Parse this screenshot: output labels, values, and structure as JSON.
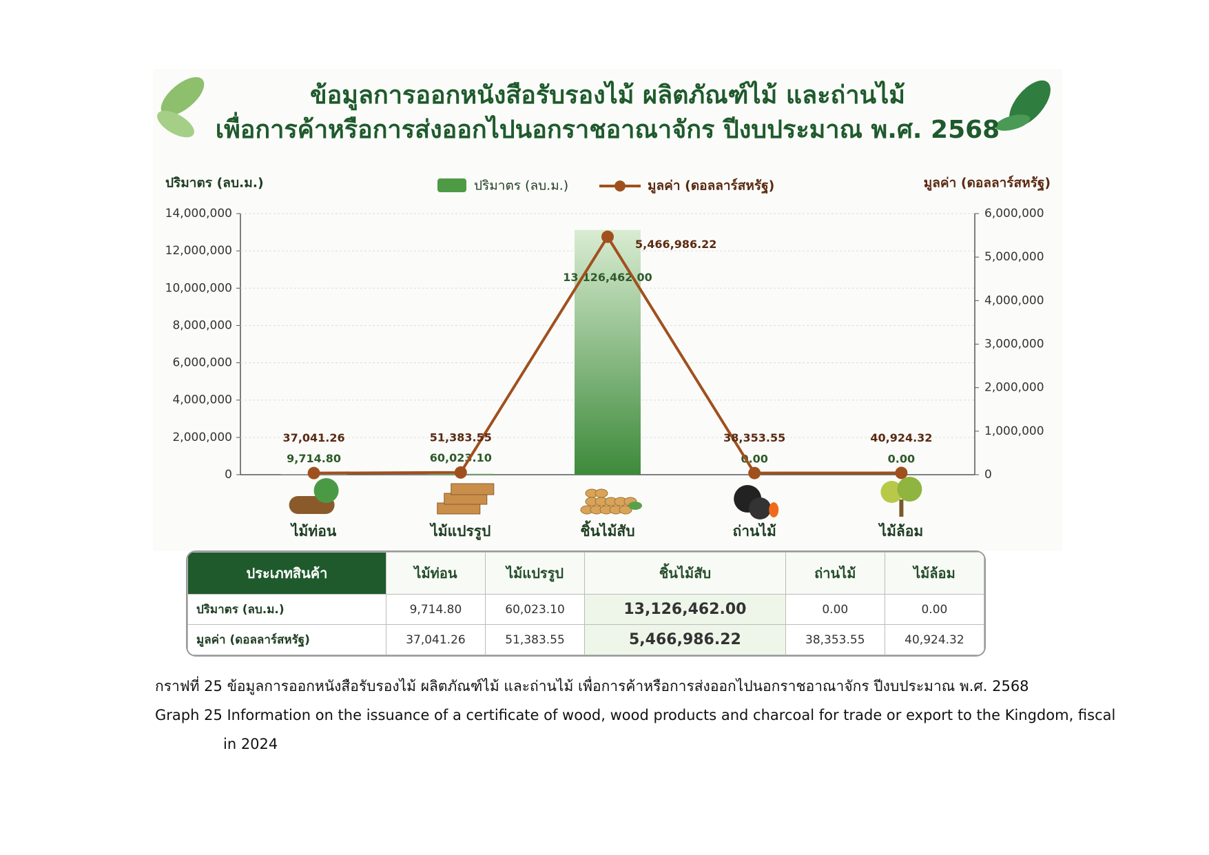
{
  "chart_data": {
    "type": "bar_line",
    "title": [
      "ข้อมูลการออกหนังสือรับรองไม้ ผลิตภัณฑ์ไม้ และถ่านไม้",
      "เพื่อการค้าหรือการส่งออกไปนอกราชอาณาจักร ปีงบประมาณ พ.ศ. 2568"
    ],
    "ylabel": "ปริมาตร (ลบ.ม.)",
    "y2label": "มูลค่า (ดอลลาร์สหรัฐ)",
    "categories": [
      "ไม้ท่อน",
      "ไม้แปรรูป",
      "ชิ้นไม้สับ",
      "ถ่านไม้",
      "ไม้ล้อม"
    ],
    "series": [
      {
        "name": "ปริมาตร (ลบ.ม.)",
        "type": "bar",
        "color": "#4f9a45",
        "values": [
          9714.8,
          60023.1,
          13126462,
          0,
          0
        ],
        "value_labels": [
          "9,714.80",
          "60,023.10",
          "13,126,462.00",
          "0.00",
          "0.00"
        ]
      },
      {
        "name": "มูลค่า (ดอลลาร์สหรัฐ)",
        "type": "line",
        "axis": "y2",
        "color": "#a0501e",
        "values": [
          37041.26,
          51383.55,
          5466986.22,
          38353.55,
          40924.32
        ],
        "value_labels": [
          "37,041.26",
          "51,383.55",
          "5,466,986.22",
          "38,353.55",
          "40,924.32"
        ]
      }
    ],
    "ylim": [
      0,
      14000000
    ],
    "yticks": [
      {
        "value": 0,
        "label": "0"
      },
      {
        "value": 2000000,
        "label": "2,000,000"
      },
      {
        "value": 4000000,
        "label": "4,000,000"
      },
      {
        "value": 6000000,
        "label": "6,000,000"
      },
      {
        "value": 8000000,
        "label": "8,000,000"
      },
      {
        "value": 10000000,
        "label": "10,000,000"
      },
      {
        "value": 12000000,
        "label": "12,000,000"
      },
      {
        "value": 14000000,
        "label": "14,000,000"
      }
    ],
    "y2lim": [
      0,
      6000000
    ],
    "y2ticks": [
      {
        "value": 0,
        "label": "0"
      },
      {
        "value": 1000000,
        "label": "1,000,000"
      },
      {
        "value": 2000000,
        "label": "2,000,000"
      },
      {
        "value": 3000000,
        "label": "3,000,000"
      },
      {
        "value": 4000000,
        "label": "4,000,000"
      },
      {
        "value": 5000000,
        "label": "5,000,000"
      },
      {
        "value": 6000000,
        "label": "6,000,000"
      }
    ],
    "grid": true,
    "legend": "top"
  },
  "table": {
    "header": [
      "ประเภทสินค้า",
      "ไม้ท่อน",
      "ไม้แปรรูป",
      "ชิ้นไม้สับ",
      "ถ่านไม้",
      "ไม้ล้อม"
    ],
    "rows": [
      [
        "ปริมาตร (ลบ.ม.)",
        "9,714.80",
        "60,023.10",
        "13,126,462.00",
        "0.00",
        "0.00"
      ],
      [
        "มูลค่า (ดอลลาร์สหรัฐ)",
        "37,041.26",
        "51,383.55",
        "5,466,986.22",
        "38,353.55",
        "40,924.32"
      ]
    ]
  },
  "caption": {
    "th": "กราฟที่ 25 ข้อมูลการออกหนังสือรับรองไม้ ผลิตภัณฑ์ไม้ และถ่านไม้ เพื่อการค้าหรือการส่งออกไปนอกราชอาณาจักร ปีงบประมาณ พ.ศ. 2568",
    "en": "Graph 25 Information on the issuance of a certificate of wood, wood products and charcoal for trade or export to the Kingdom, fiscal in 2024"
  }
}
